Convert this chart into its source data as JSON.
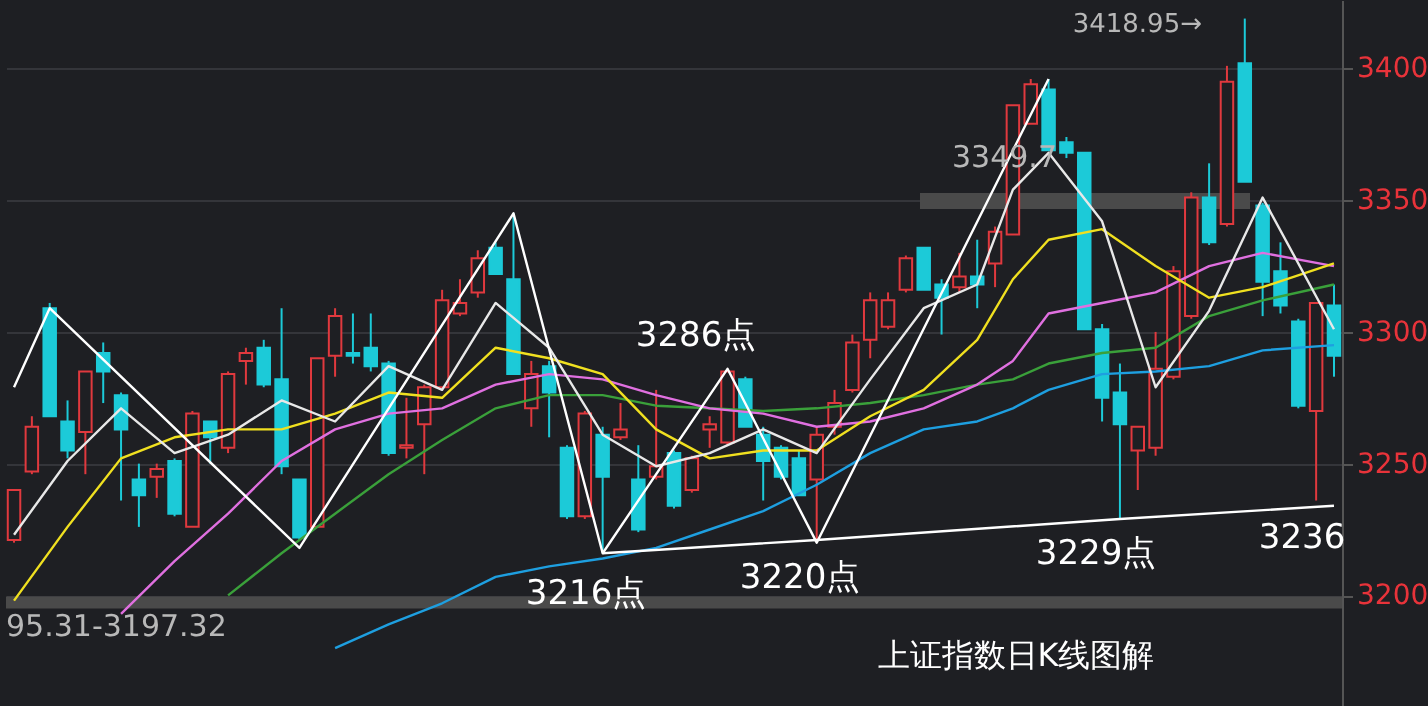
{
  "chart_data": {
    "type": "candlestick",
    "categories": [
      null,
      null,
      null,
      null,
      null,
      null,
      null,
      null,
      null,
      null,
      null,
      null,
      null,
      null,
      null,
      null,
      null,
      null,
      null,
      null,
      null,
      null,
      null,
      null,
      null,
      null,
      null,
      null,
      null,
      null,
      null,
      null,
      null,
      null,
      null,
      null,
      null,
      null,
      null,
      null,
      null,
      null,
      null,
      null,
      null,
      null,
      null,
      null,
      null,
      null,
      null,
      null,
      null,
      null,
      null,
      null,
      null,
      null,
      null,
      null,
      null,
      null,
      null,
      null,
      null,
      null,
      null,
      null,
      null,
      null,
      null,
      null,
      null,
      null,
      null
    ],
    "ohlc": [
      [
        3221,
        3240,
        3220,
        3240
      ],
      [
        3247,
        3268,
        3246,
        3264
      ],
      [
        3309,
        3311,
        3268,
        3268
      ],
      [
        3266,
        3274,
        3252,
        3255
      ],
      [
        3262,
        3285,
        3246,
        3285
      ],
      [
        3292,
        3296,
        3273,
        3285
      ],
      [
        3276,
        3277,
        3236,
        3263
      ],
      [
        3244,
        3250,
        3226,
        3238
      ],
      [
        3245,
        3250,
        3237,
        3248
      ],
      [
        3251,
        3252,
        3230,
        3231
      ],
      [
        3226,
        3270,
        3226,
        3269
      ],
      [
        3266,
        3266,
        3250,
        3260
      ],
      [
        3256,
        3285,
        3254,
        3284
      ],
      [
        3289,
        3294,
        3280,
        3292
      ],
      [
        3294,
        3297,
        3279,
        3280
      ],
      [
        3282,
        3309,
        3246,
        3249
      ],
      [
        3244,
        3244,
        3221,
        3222
      ],
      [
        3226,
        3290,
        3226,
        3290
      ],
      [
        3291,
        3309,
        3283,
        3306
      ],
      [
        3292,
        3307,
        3288,
        3291
      ],
      [
        3294,
        3307,
        3285,
        3287
      ],
      [
        3288,
        3289,
        3253,
        3254
      ],
      [
        3256,
        3275,
        3252,
        3257
      ],
      [
        3265,
        3280,
        3246,
        3279
      ],
      [
        3279,
        3316,
        3279,
        3312
      ],
      [
        3307,
        3320,
        3306,
        3311
      ],
      [
        3315,
        3331,
        3313,
        3328
      ],
      [
        3332,
        3334,
        3322,
        3322
      ],
      [
        3320,
        3345,
        3284,
        3284
      ],
      [
        3271,
        3289,
        3264,
        3284
      ],
      [
        3287,
        3289,
        3260,
        3277
      ],
      [
        3256,
        3257,
        3229,
        3230
      ],
      [
        3230,
        3270,
        3229,
        3269
      ],
      [
        3261,
        3264,
        3216,
        3245
      ],
      [
        3260,
        3273,
        3259,
        3263
      ],
      [
        3244,
        3257,
        3224,
        3225
      ],
      [
        3245,
        3278,
        3244,
        3249
      ],
      [
        3254,
        3255,
        3233,
        3234
      ],
      [
        3240,
        3253,
        3239,
        3252
      ],
      [
        3263,
        3268,
        3256,
        3265
      ],
      [
        3258,
        3286,
        3257,
        3285
      ],
      [
        3282,
        3283,
        3264,
        3264
      ],
      [
        3261,
        3264,
        3236,
        3251
      ],
      [
        3256,
        3257,
        3244,
        3245
      ],
      [
        3252,
        3255,
        3238,
        3238
      ],
      [
        3244,
        3264,
        3220,
        3261
      ],
      [
        3264,
        3278,
        3261,
        3273
      ],
      [
        3278,
        3299,
        3277,
        3296
      ],
      [
        3297,
        3315,
        3290,
        3312
      ],
      [
        3302,
        3315,
        3301,
        3312
      ],
      [
        3316,
        3329,
        3315,
        3328
      ],
      [
        3332,
        3332,
        3316,
        3316
      ],
      [
        3318,
        3320,
        3299,
        3313
      ],
      [
        3317,
        3330,
        3315,
        3321
      ],
      [
        3321,
        3335,
        3309,
        3318
      ],
      [
        3326,
        3340,
        3317,
        3338
      ],
      [
        3337,
        3386,
        3337,
        3386
      ],
      [
        3379,
        3396,
        3379,
        3394
      ],
      [
        3392,
        3396,
        3369,
        3369
      ],
      [
        3372,
        3374,
        3366,
        3368
      ],
      [
        3368,
        3368,
        3301,
        3301
      ],
      [
        3301,
        3303,
        3266,
        3275
      ],
      [
        3277,
        3288,
        3229,
        3265
      ],
      [
        3255,
        3264,
        3240,
        3264
      ],
      [
        3256,
        3300,
        3253,
        3286
      ],
      [
        3283,
        3325,
        3282,
        3323
      ],
      [
        3306,
        3353,
        3305,
        3351
      ],
      [
        3351,
        3364,
        3333,
        3334
      ],
      [
        3341,
        3401,
        3340,
        3395
      ],
      [
        3402,
        3418.95,
        3357,
        3357
      ],
      [
        3348,
        3349,
        3306,
        3319
      ],
      [
        3323,
        3334,
        3307,
        3310
      ],
      [
        3304,
        3305,
        3271,
        3272
      ],
      [
        3270,
        3311,
        3236,
        3311
      ],
      [
        3310,
        3318,
        3283,
        3291
      ]
    ],
    "colors": [
      "#e0393e",
      "#e0393e",
      "#1ccad8",
      "#1ccad8",
      "#e0393e",
      "#1ccad8",
      "#1ccad8",
      "#1ccad8",
      "#e0393e",
      "#1ccad8",
      "#e0393e",
      "#1ccad8",
      "#e0393e",
      "#e0393e",
      "#1ccad8",
      "#1ccad8",
      "#1ccad8",
      "#e0393e",
      "#e0393e",
      "#1ccad8",
      "#1ccad8",
      "#1ccad8",
      "#e0393e",
      "#e0393e",
      "#e0393e",
      "#e0393e",
      "#e0393e",
      "#1ccad8",
      "#1ccad8",
      "#e0393e",
      "#1ccad8",
      "#1ccad8",
      "#e0393e",
      "#1ccad8",
      "#e0393e",
      "#1ccad8",
      "#e0393e",
      "#1ccad8",
      "#e0393e",
      "#e0393e",
      "#e0393e",
      "#1ccad8",
      "#1ccad8",
      "#1ccad8",
      "#1ccad8",
      "#e0393e",
      "#e0393e",
      "#e0393e",
      "#e0393e",
      "#e0393e",
      "#e0393e",
      "#1ccad8",
      "#1ccad8",
      "#e0393e",
      "#1ccad8",
      "#e0393e",
      "#e0393e",
      "#e0393e",
      "#1ccad8",
      "#1ccad8",
      "#1ccad8",
      "#1ccad8",
      "#1ccad8",
      "#e0393e",
      "#e0393e",
      "#e0393e",
      "#e0393e",
      "#1ccad8",
      "#e0393e",
      "#1ccad8",
      "#1ccad8",
      "#1ccad8",
      "#1ccad8",
      "#e0393e",
      "#1ccad8"
    ],
    "series": [
      {
        "type": "line",
        "color": "#1e9fe0",
        "values": [
          null,
          null,
          null,
          null,
          null,
          null,
          null,
          null,
          null,
          null,
          null,
          null,
          null,
          null,
          null,
          null,
          null,
          null,
          3180,
          null,
          null,
          3189,
          null,
          null,
          3197,
          null,
          null,
          3207,
          null,
          null,
          3211,
          null,
          null,
          3214,
          null,
          null,
          3218,
          null,
          null,
          3225,
          null,
          null,
          3232,
          null,
          null,
          3242,
          null,
          null,
          3254,
          null,
          null,
          3263,
          null,
          null,
          3266,
          null,
          3271,
          null,
          3278,
          null,
          null,
          3284,
          null,
          null,
          3285,
          null,
          null,
          3287,
          null,
          null,
          3293,
          null,
          null,
          null,
          3295
        ]
      },
      {
        "type": "line",
        "color": "#3aa03a",
        "values": [
          null,
          null,
          null,
          null,
          null,
          null,
          null,
          null,
          null,
          null,
          null,
          null,
          3200,
          null,
          null,
          3216,
          null,
          null,
          3231,
          null,
          null,
          3246,
          null,
          null,
          3259,
          null,
          null,
          3271,
          null,
          null,
          3276,
          null,
          null,
          3276,
          null,
          null,
          3272,
          null,
          null,
          3271,
          null,
          null,
          3270,
          null,
          null,
          3271,
          null,
          null,
          3273,
          null,
          null,
          3276,
          null,
          null,
          3280,
          null,
          3282,
          null,
          3288,
          null,
          null,
          3292,
          null,
          null,
          3294,
          null,
          null,
          3306,
          null,
          null,
          3312,
          null,
          null,
          null,
          3318
        ]
      },
      {
        "type": "line",
        "color": "#e070e0",
        "values": [
          null,
          null,
          null,
          null,
          null,
          null,
          3193,
          null,
          null,
          3213,
          null,
          null,
          3231,
          null,
          null,
          3251,
          null,
          null,
          3263,
          null,
          null,
          3269,
          null,
          null,
          3271,
          null,
          null,
          3280,
          null,
          null,
          3284,
          null,
          null,
          3282,
          null,
          null,
          3276,
          null,
          null,
          3271,
          null,
          null,
          3269,
          null,
          null,
          3264,
          null,
          null,
          3266,
          null,
          null,
          3271,
          null,
          null,
          3280,
          null,
          3289,
          null,
          3307,
          null,
          null,
          3311,
          null,
          null,
          3315,
          null,
          null,
          3325,
          null,
          null,
          3330,
          null,
          null,
          null,
          3325
        ]
      },
      {
        "type": "line",
        "color": "#f0e020",
        "values": [
          3198,
          null,
          null,
          3226,
          null,
          null,
          3252,
          null,
          null,
          3260,
          null,
          null,
          3263,
          null,
          null,
          3263,
          null,
          null,
          3269,
          null,
          null,
          3277,
          null,
          null,
          3275,
          null,
          null,
          3294,
          null,
          null,
          3290,
          null,
          null,
          3284,
          null,
          null,
          3263,
          null,
          null,
          3252,
          null,
          null,
          3255,
          null,
          null,
          3255,
          null,
          null,
          3268,
          null,
          null,
          3278,
          null,
          null,
          3297,
          null,
          3320,
          null,
          3335,
          null,
          null,
          3339,
          null,
          null,
          3325,
          null,
          null,
          3313,
          null,
          null,
          3317,
          null,
          null,
          null,
          3326
        ]
      },
      {
        "type": "line",
        "color": "#e8e8e8",
        "values": [
          3223,
          null,
          null,
          3251,
          null,
          null,
          3271,
          null,
          null,
          3254,
          null,
          null,
          3261,
          null,
          null,
          3274,
          null,
          null,
          3266,
          null,
          null,
          3287,
          null,
          null,
          3278,
          null,
          null,
          3311,
          null,
          null,
          3294,
          null,
          null,
          3261,
          null,
          null,
          3249,
          null,
          null,
          3254,
          null,
          null,
          3263,
          null,
          null,
          3254,
          null,
          null,
          3282,
          null,
          null,
          3309,
          null,
          null,
          3318,
          null,
          3354,
          null,
          3368,
          null,
          null,
          3342,
          null,
          null,
          3279,
          null,
          null,
          3308,
          null,
          null,
          3351,
          null,
          null,
          null,
          3301
        ]
      },
      {
        "type": "line",
        "color": "#ffffff",
        "values": [
          3279,
          null,
          3309,
          null,
          null,
          null,
          null,
          null,
          null,
          null,
          null,
          null,
          null,
          null,
          null,
          null,
          3218,
          null,
          null,
          null,
          null,
          null,
          null,
          null,
          null,
          null,
          null,
          null,
          3345,
          null,
          null,
          null,
          null,
          3216,
          null,
          null,
          null,
          null,
          null,
          null,
          3286,
          null,
          null,
          null,
          null,
          3220,
          null,
          null,
          null,
          null,
          null,
          null,
          null,
          null,
          null,
          null,
          null,
          null,
          3396,
          null,
          null,
          null,
          null,
          null,
          null,
          null,
          null,
          null,
          null,
          null,
          null,
          null,
          null,
          null,
          null
        ]
      },
      {
        "type": "line",
        "color": "#ffffff",
        "values": [
          null,
          null,
          null,
          null,
          null,
          null,
          null,
          null,
          null,
          null,
          null,
          null,
          null,
          null,
          null,
          null,
          null,
          null,
          null,
          null,
          null,
          null,
          null,
          null,
          null,
          null,
          null,
          null,
          null,
          null,
          null,
          null,
          null,
          3216,
          null,
          null,
          null,
          null,
          null,
          null,
          null,
          null,
          null,
          null,
          null,
          3221,
          null,
          null,
          null,
          null,
          null,
          null,
          null,
          null,
          null,
          null,
          null,
          null,
          null,
          null,
          null,
          null,
          3229,
          null,
          null,
          null,
          null,
          null,
          null,
          null,
          null,
          null,
          null,
          null,
          3234
        ]
      }
    ],
    "ylim": [
      3158,
      3426
    ],
    "yticks": [
      3200,
      3250,
      3300,
      3350,
      3400
    ],
    "grid": "y",
    "tick_labels": "y",
    "ref_lines": [
      {
        "axis": "y",
        "value": 3349.7,
        "label": "3349.7",
        "color": "#4a4a4a"
      },
      {
        "axis": "y",
        "value": 3197.32,
        "color": "#4a4a4a"
      }
    ],
    "annotations": [
      "3418.95→",
      "3286点",
      "3216点",
      "3220点",
      "3229点",
      "3236",
      "上证指数日K线图解",
      "95.31-3197.32"
    ]
  }
}
